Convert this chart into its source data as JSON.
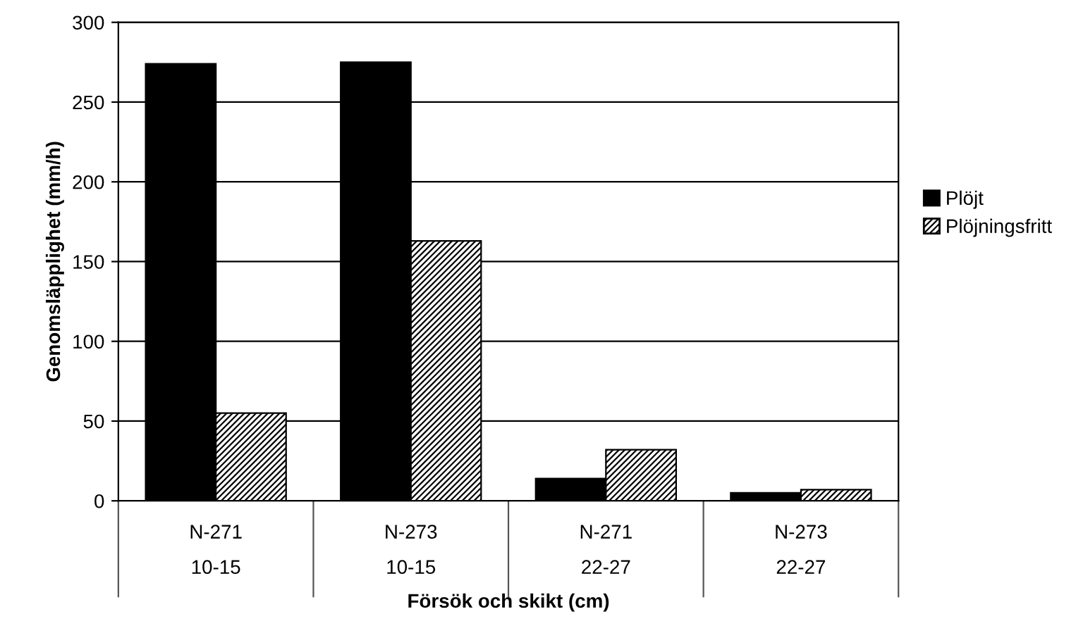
{
  "chart_data": {
    "type": "bar",
    "xlabel": "Försök och skikt (cm)",
    "ylabel": "Genomsläpplighet (mm/h)",
    "categories": [
      "N-271\n10-15",
      "N-273\n10-15",
      "N-271\n22-27",
      "N-273\n22-27"
    ],
    "series": [
      {
        "name": "Plöjt",
        "color": "#000000",
        "values": [
          274,
          275,
          14,
          5
        ]
      },
      {
        "name": "Plöjningsfritt",
        "color": "#000000",
        "values": [
          55,
          163,
          32,
          7
        ]
      }
    ],
    "ylim": [
      0,
      300
    ],
    "yticks": [
      0,
      50,
      100,
      150,
      200,
      250,
      300
    ],
    "grid": "y",
    "legend": "right"
  }
}
